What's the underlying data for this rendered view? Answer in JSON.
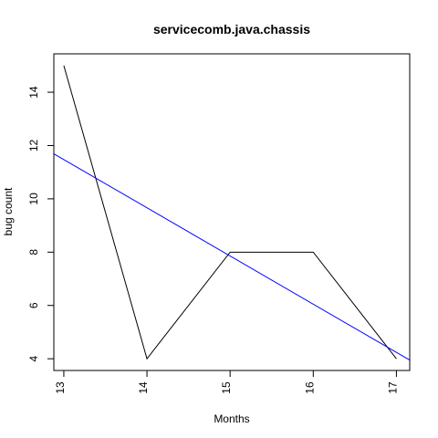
{
  "chart_data": {
    "type": "line",
    "title": "servicecomb.java.chassis",
    "xlabel": "Months",
    "ylabel": "bug count",
    "xlim": [
      12.88,
      17.16
    ],
    "ylim": [
      3.56,
      15.44
    ],
    "x_ticks": [
      13,
      14,
      15,
      16,
      17
    ],
    "y_ticks": [
      4,
      6,
      8,
      10,
      12,
      14
    ],
    "grid": false,
    "series": [
      {
        "color": "#000000",
        "x": [
          13,
          14,
          15,
          16,
          17
        ],
        "y": [
          15,
          4,
          8,
          8,
          4
        ]
      }
    ],
    "trend_line": {
      "color": "#0000ff",
      "x": [
        12.88,
        17.16
      ],
      "y": [
        11.69,
        3.95
      ]
    }
  }
}
